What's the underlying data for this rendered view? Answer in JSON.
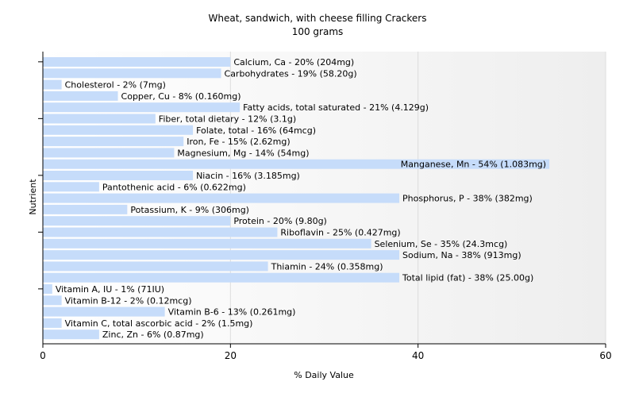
{
  "chart_data": {
    "type": "bar",
    "orientation": "horizontal",
    "title": "Wheat, sandwich, with cheese filling Crackers",
    "subtitle": "100 grams",
    "xlabel": "% Daily Value",
    "ylabel": "Nutrient",
    "xlim": [
      0,
      60
    ],
    "xticks": [
      0,
      20,
      40,
      60
    ],
    "grid": true,
    "bar_color": "#c6dcfa",
    "categories": [
      "Calcium, Ca",
      "Carbohydrates",
      "Cholesterol",
      "Copper, Cu",
      "Fatty acids, total saturated",
      "Fiber, total dietary",
      "Folate, total",
      "Iron, Fe",
      "Magnesium, Mg",
      "Manganese, Mn",
      "Niacin",
      "Pantothenic acid",
      "Phosphorus, P",
      "Potassium, K",
      "Protein",
      "Riboflavin",
      "Selenium, Se",
      "Sodium, Na",
      "Thiamin",
      "Total lipid (fat)",
      "Vitamin A, IU",
      "Vitamin B-12",
      "Vitamin B-6",
      "Vitamin C, total ascorbic acid",
      "Zinc, Zn"
    ],
    "values": [
      20,
      19,
      2,
      8,
      21,
      12,
      16,
      15,
      14,
      54,
      16,
      6,
      38,
      9,
      20,
      25,
      35,
      38,
      24,
      38,
      1,
      2,
      13,
      2,
      6
    ],
    "bar_labels": [
      "Calcium, Ca - 20% (204mg)",
      "Carbohydrates - 19% (58.20g)",
      "Cholesterol - 2% (7mg)",
      "Copper, Cu - 8% (0.160mg)",
      "Fatty acids, total saturated - 21% (4.129g)",
      "Fiber, total dietary - 12% (3.1g)",
      "Folate, total - 16% (64mcg)",
      "Iron, Fe - 15% (2.62mg)",
      "Magnesium, Mg - 14% (54mg)",
      "Manganese, Mn - 54% (1.083mg)",
      "Niacin - 16% (3.185mg)",
      "Pantothenic acid - 6% (0.622mg)",
      "Phosphorus, P - 38% (382mg)",
      "Potassium, K - 9% (306mg)",
      "Protein - 20% (9.80g)",
      "Riboflavin - 25% (0.427mg)",
      "Selenium, Se - 35% (24.3mcg)",
      "Sodium, Na - 38% (913mg)",
      "Thiamin - 24% (0.358mg)",
      "Total lipid (fat) - 38% (25.00g)",
      "Vitamin A, IU - 1% (71IU)",
      "Vitamin B-12 - 2% (0.12mcg)",
      "Vitamin B-6 - 13% (0.261mg)",
      "Vitamin C, total ascorbic acid - 2% (1.5mg)",
      "Zinc, Zn - 6% (0.87mg)"
    ]
  }
}
